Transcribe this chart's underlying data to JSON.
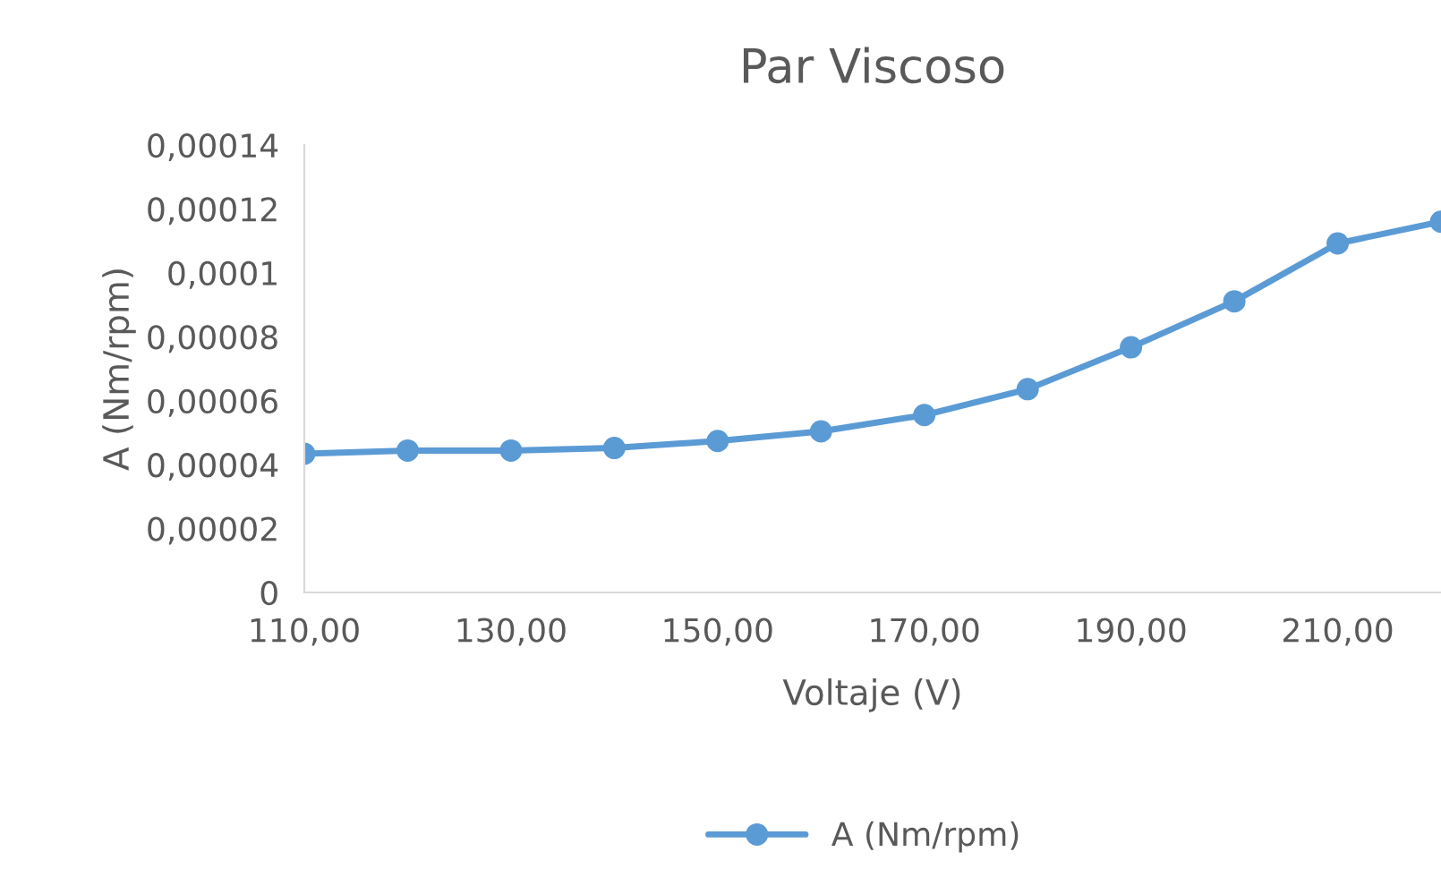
{
  "chart_data": {
    "type": "line",
    "title": "Par Viscoso",
    "xlabel": "Voltaje (V)",
    "ylabel": "A (Nm/rpm)",
    "categories": [
      "110,00",
      null,
      "130,00",
      null,
      "150,00",
      null,
      "170,00",
      null,
      "190,00",
      null,
      "210,00",
      null
    ],
    "series": [
      {
        "name": "A (Nm/rpm)",
        "color": "#5b9bd5",
        "values": [
          4.34e-05,
          4.44e-05,
          4.44e-05,
          4.52e-05,
          4.74e-05,
          5.04e-05,
          5.55e-05,
          6.36e-05,
          7.67e-05,
          9.11e-05,
          0.0001092,
          0.000116
        ]
      }
    ],
    "ylim": [
      0,
      0.00014
    ],
    "yticks": [
      {
        "value": 0,
        "label": "0"
      },
      {
        "value": 2e-05,
        "label": "0,00002"
      },
      {
        "value": 4e-05,
        "label": "0,00004"
      },
      {
        "value": 6e-05,
        "label": "0,00006"
      },
      {
        "value": 8e-05,
        "label": "0,00008"
      },
      {
        "value": 0.0001,
        "label": "0,0001"
      },
      {
        "value": 0.00012,
        "label": "0,00012"
      },
      {
        "value": 0.00014,
        "label": "0,00014"
      }
    ],
    "grid": false,
    "legend": "bottom",
    "marker": "circle",
    "line_style": "solid"
  }
}
